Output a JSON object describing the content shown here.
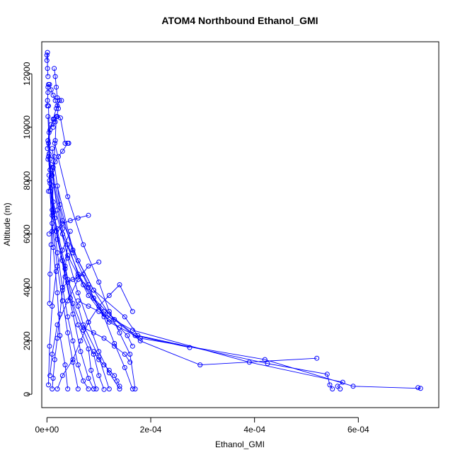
{
  "chart_data": {
    "type": "scatter",
    "title": "ATOM4 Northbound Ethanol_GMI",
    "xlabel": "Ethanol_GMI",
    "ylabel": "Altitude (m)",
    "xlim": [
      -1e-05,
      0.000755
    ],
    "ylim": [
      -500,
      13200
    ],
    "x_ticks": [
      0,
      0.0002,
      0.0004,
      0.0006
    ],
    "x_tick_labels": [
      "0e+00",
      "2e-04",
      "4e-04",
      "6e-04"
    ],
    "y_ticks": [
      0,
      2000,
      4000,
      6000,
      8000,
      10000,
      12000
    ],
    "y_tick_labels": [
      "0",
      "2000",
      "4000",
      "6000",
      "8000",
      "10000",
      "12000"
    ],
    "grid": false,
    "legend": "none",
    "marker": "open-circle",
    "line_connected": true,
    "color": "#0000ff",
    "series": [
      {
        "x": [
          9.5e-05,
          8.5e-05,
          8e-05,
          6e-05,
          4.5e-05,
          3e-05,
          1.2e-05,
          6e-06,
          3e-06
        ],
        "y": [
          200,
          900,
          1700,
          2600,
          3600,
          5000,
          6800,
          8800,
          10800
        ]
      },
      {
        "x": [
          0.00011,
          0.0001,
          9e-05,
          7e-05,
          5e-05,
          3.5e-05,
          1.5e-05,
          4e-06
        ],
        "y": [
          180,
          700,
          1500,
          2400,
          3400,
          4800,
          6600,
          9000
        ]
      },
      {
        "x": [
          0.00014,
          0.00012,
          0.0001,
          8e-05,
          6e-05,
          4e-05,
          2e-05,
          8e-06
        ],
        "y": [
          200,
          800,
          1600,
          2700,
          3800,
          5100,
          6900,
          8600
        ]
      },
      {
        "x": [
          0.000165,
          0.00015,
          0.00013,
          0.00011,
          8e-05,
          5e-05,
          2.5e-05,
          1e-05
        ],
        "y": [
          200,
          1000,
          1900,
          2900,
          4000,
          5300,
          7100,
          9200
        ]
      },
      {
        "x": [
          0.00017,
          0.00016,
          0.00014,
          0.00012,
          0.0001,
          7e-05,
          4e-05,
          1.5e-05
        ],
        "y": [
          200,
          1500,
          2300,
          3100,
          4200,
          5600,
          7400,
          9400
        ]
      },
      {
        "x": [
          6e-05,
          5e-05,
          4e-05,
          3e-05,
          2e-05,
          1e-05,
          4e-06
        ],
        "y": [
          200,
          1200,
          2300,
          3500,
          4800,
          6400,
          8200
        ]
      },
      {
        "x": [
          4e-05,
          3.5e-05,
          2.5e-05,
          2e-05,
          1.2e-05,
          6e-06
        ],
        "y": [
          200,
          1100,
          2200,
          3800,
          5500,
          7600
        ]
      },
      {
        "x": [
          0.000715,
          0.00072,
          0.00059,
          0.00042,
          0.00018,
          0.00012,
          8e-05,
          4e-05,
          1.2e-05
        ],
        "y": [
          250,
          220,
          300,
          1300,
          2100,
          2700,
          3700,
          5200,
          7200
        ]
      },
      {
        "x": [
          0.00055,
          0.000545,
          0.00054,
          0.000425,
          0.000175,
          0.00015,
          9e-05,
          5e-05,
          2e-05
        ],
        "y": [
          200,
          350,
          750,
          1150,
          2200,
          2900,
          3900,
          5400,
          7800
        ]
      },
      {
        "x": [
          0.000565,
          0.00056,
          0.00057,
          0.00039,
          0.000165,
          0.00011,
          7e-05,
          3e-05
        ],
        "y": [
          200,
          300,
          450,
          1200,
          2400,
          3000,
          4100,
          6000
        ]
      },
      {
        "x": [
          0.00052,
          0.000295,
          0.00018,
          0.00013,
          9e-05,
          6e-05,
          3e-05,
          1e-05
        ],
        "y": [
          1350,
          1100,
          2000,
          2800,
          3600,
          4500,
          6200,
          8200
        ]
      },
      {
        "x": [
          0.000275,
          0.00017,
          0.00012,
          9e-05,
          6e-05,
          3e-05,
          1e-05
        ],
        "y": [
          1750,
          2200,
          3000,
          3900,
          5000,
          6500,
          8400
        ]
      },
      {
        "x": [
          0.00012,
          0.0001,
          7e-05,
          6e-05,
          4e-05,
          2e-05,
          5e-06
        ],
        "y": [
          200,
          1400,
          2600,
          3300,
          4300,
          5800,
          8000
        ]
      },
      {
        "x": [
          9e-05,
          8e-05,
          6.5e-05,
          5e-05,
          3.5e-05,
          1.8e-05,
          6e-06,
          2e-06
        ],
        "y": [
          200,
          600,
          1600,
          3000,
          4400,
          6100,
          8400,
          10400
        ]
      },
      {
        "x": [
          1e-05,
          1.2e-05,
          1.5e-05,
          2e-05,
          2.5e-05,
          3e-05,
          3.5e-05,
          4e-05
        ],
        "y": [
          200,
          600,
          1300,
          2100,
          3000,
          3900,
          4700,
          5600
        ]
      },
      {
        "x": [
          3e-06,
          5e-06,
          1e-05,
          1.8e-05,
          3e-05,
          4.5e-05
        ],
        "y": [
          350,
          1800,
          3300,
          4600,
          5400,
          6100
        ]
      },
      {
        "x": [
          6e-06,
          1e-05,
          2e-05,
          4e-05,
          6e-05,
          8e-05,
          0.0001
        ],
        "y": [
          700,
          1500,
          2600,
          3500,
          4300,
          4800,
          4950
        ]
      },
      {
        "x": [
          2e-05,
          3e-05,
          5e-05,
          6.5e-05,
          8e-05,
          0.0001,
          0.00012,
          0.00014,
          0.000165
        ],
        "y": [
          200,
          700,
          1300,
          2000,
          2700,
          3300,
          3700,
          4100,
          3100
        ]
      },
      {
        "x": [
          8e-05,
          7e-05,
          6e-05,
          5e-05,
          4e-05,
          3e-05,
          2e-05,
          1e-05,
          3e-06
        ],
        "y": [
          200,
          500,
          1100,
          2000,
          2900,
          4000,
          5300,
          6900,
          8900
        ]
      },
      {
        "x": [
          5e-06,
          6e-06,
          8e-06,
          1e-05,
          1.2e-05,
          1.4e-05,
          1.6e-05,
          1.8e-05
        ],
        "y": [
          3400,
          4500,
          5600,
          6700,
          7800,
          8900,
          9500,
          10400
        ]
      },
      {
        "x": [
          2e-06,
          3e-06,
          6e-06,
          1.2e-05,
          1.8e-05,
          2.4e-05,
          2.8e-05
        ],
        "y": [
          8800,
          9400,
          9900,
          10300,
          10700,
          11000,
          11000
        ]
      },
      {
        "x": [
          1e-06,
          2e-06,
          4e-06,
          8e-06,
          1.4e-05,
          2e-05,
          2.6e-05,
          3.5e-05,
          4.2e-05
        ],
        "y": [
          9200,
          9500,
          9800,
          10100,
          10300,
          10400,
          10350,
          9400,
          9400
        ]
      },
      {
        "x": [
          1e-06,
          1e-06,
          2e-06,
          2e-06,
          3e-06,
          5e-06,
          8e-06,
          1.2e-05,
          1.6e-05,
          2e-05
        ],
        "y": [
          10800,
          11000,
          11300,
          11500,
          11600,
          11600,
          11400,
          11200,
          11000,
          10800
        ]
      },
      {
        "x": [
          0.0,
          0.0,
          1e-06,
          1e-06,
          2e-06
        ],
        "y": [
          12500,
          12700,
          12800,
          12200,
          11900
        ]
      },
      {
        "x": [
          1.4e-05,
          1.6e-05,
          1.8e-05,
          2e-05,
          2.2e-05,
          1.9e-05,
          1.6e-05,
          1.2e-05
        ],
        "y": [
          12200,
          11900,
          11500,
          11100,
          10700,
          10400,
          10200,
          10000
        ]
      },
      {
        "x": [
          3e-06,
          6e-06,
          9e-06,
          1.2e-05,
          1.6e-05,
          2.2e-05,
          3e-05,
          4e-05
        ],
        "y": [
          7600,
          7900,
          8200,
          8500,
          8700,
          8900,
          9100,
          9400
        ]
      },
      {
        "x": [
          4e-06,
          1e-05,
          2e-05,
          3e-05,
          4.5e-05,
          6e-05,
          8e-05
        ],
        "y": [
          6000,
          6100,
          6200,
          6400,
          6500,
          6600,
          6700
        ]
      },
      {
        "x": [
          3e-05,
          4e-05,
          5e-05,
          6e-05,
          7e-05,
          8e-05,
          9e-05,
          0.0001,
          0.00011
        ],
        "y": [
          4000,
          4200,
          4300,
          4400,
          4500,
          4100,
          3600,
          3300,
          3100
        ]
      },
      {
        "x": [
          6e-05,
          8e-05,
          0.0001,
          0.00012,
          0.00014,
          0.000155,
          0.000165
        ],
        "y": [
          3500,
          3300,
          3100,
          2800,
          2500,
          2200,
          1800
        ]
      },
      {
        "x": [
          7e-05,
          9e-05,
          0.00011,
          0.00013,
          0.00015,
          0.00016
        ],
        "y": [
          2500,
          2300,
          2100,
          1800,
          1500,
          1200
        ]
      },
      {
        "x": [
          9e-05,
          0.0001,
          0.00011,
          0.00012,
          0.00013,
          0.000135,
          0.00014
        ],
        "y": [
          1600,
          1300,
          1100,
          900,
          700,
          500,
          300
        ]
      }
    ]
  }
}
